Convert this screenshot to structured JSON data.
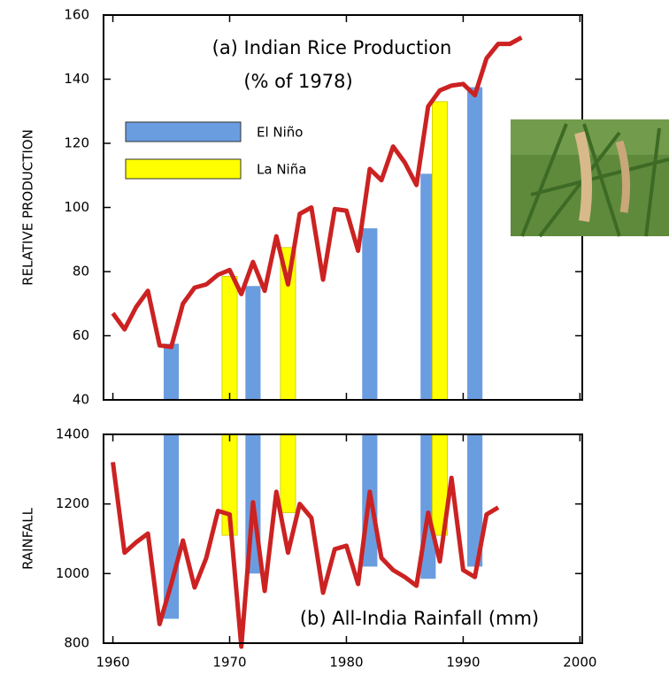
{
  "chart_data": [
    {
      "type": "combo",
      "title": "(a) Indian Rice Production",
      "subtitle": "(% of 1978)",
      "y_label": "RELATIVE PRODUCTION",
      "xlim": [
        1959.2,
        2000.2
      ],
      "xticks": [
        1960,
        1970,
        1980,
        1990,
        2000
      ],
      "ylim": [
        40,
        160
      ],
      "yticks": [
        40,
        60,
        80,
        100,
        120,
        140,
        160
      ],
      "series": [
        {
          "name": "El Niño",
          "kind": "bar",
          "color": "#6a9de0",
          "x": [
            1965,
            1972,
            1982,
            1987,
            1991
          ],
          "values": [
            57.5,
            75.5,
            93.5,
            110.5,
            137.5
          ]
        },
        {
          "name": "La Niña",
          "kind": "bar",
          "color": "#ffff00",
          "x": [
            1970,
            1975,
            1988
          ],
          "values": [
            78.5,
            87.5,
            133
          ]
        },
        {
          "kind": "line",
          "color": "#cc2222",
          "x": [
            1960,
            1961,
            1962,
            1963,
            1964,
            1965,
            1966,
            1967,
            1968,
            1969,
            1970,
            1971,
            1972,
            1973,
            1974,
            1975,
            1976,
            1977,
            1978,
            1979,
            1980,
            1981,
            1982,
            1983,
            1984,
            1985,
            1986,
            1987,
            1988,
            1989,
            1990,
            1991,
            1992,
            1993,
            1994,
            1995
          ],
          "values": [
            67,
            62,
            69,
            74,
            57,
            56.5,
            70,
            75,
            76,
            79,
            80.5,
            73,
            83,
            74,
            91,
            76,
            98,
            100,
            77.5,
            99.5,
            99,
            86.5,
            112,
            108.5,
            119,
            114,
            107,
            131.5,
            136.5,
            138,
            138.5,
            135,
            146.5,
            151,
            151,
            153
          ]
        }
      ]
    },
    {
      "type": "combo",
      "title": "(b) All-India Rainfall (mm)",
      "y_label": "RAINFALL",
      "xlim": [
        1959.2,
        2000.2
      ],
      "xticks": [
        1960,
        1970,
        1980,
        1990,
        2000
      ],
      "ylim": [
        800,
        1400
      ],
      "yticks": [
        800,
        1000,
        1200,
        1400
      ],
      "bars_from": "top",
      "series": [
        {
          "kind": "bar",
          "color": "#6a9de0",
          "x": [
            1965,
            1972,
            1982,
            1987,
            1991
          ],
          "values": [
            870,
            1000,
            1020,
            985,
            1020
          ]
        },
        {
          "kind": "bar",
          "color": "#ffff00",
          "x": [
            1970,
            1975,
            1988
          ],
          "values": [
            1110,
            1175,
            1110
          ]
        },
        {
          "kind": "line",
          "color": "#cc2222",
          "x": [
            1960,
            1961,
            1962,
            1963,
            1964,
            1965,
            1966,
            1967,
            1968,
            1969,
            1970,
            1971,
            1972,
            1973,
            1974,
            1975,
            1976,
            1977,
            1978,
            1979,
            1980,
            1981,
            1982,
            1983,
            1984,
            1985,
            1986,
            1987,
            1988,
            1989,
            1990,
            1991,
            1992,
            1993
          ],
          "values": [
            1320,
            1060,
            1090,
            1115,
            855,
            970,
            1095,
            960,
            1045,
            1180,
            1170,
            790,
            1205,
            950,
            1235,
            1060,
            1200,
            1160,
            945,
            1070,
            1080,
            970,
            1235,
            1045,
            1010,
            990,
            965,
            1175,
            1035,
            1275,
            1010,
            990,
            1170,
            1190
          ]
        }
      ]
    }
  ]
}
